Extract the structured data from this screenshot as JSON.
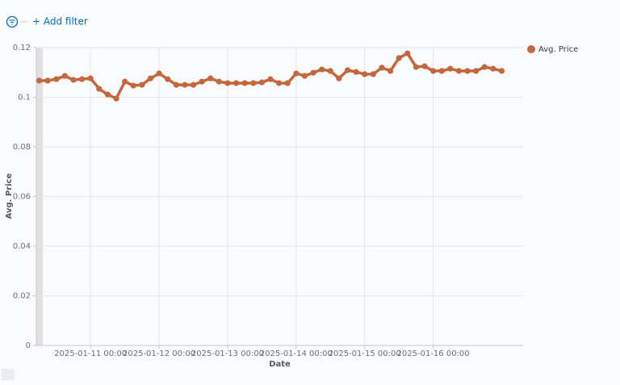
{
  "filter_bar": {
    "add_filter": "+ Add filter"
  },
  "chart_data": {
    "type": "line",
    "x_label": "Date",
    "y_label": "Avg. Price",
    "xlim": [
      "2025-01-10 05:00",
      "2025-01-17 07:30"
    ],
    "xticks": [
      "2025-01-11 00:00",
      "2025-01-12 00:00",
      "2025-01-13 00:00",
      "2025-01-14 00:00",
      "2025-01-15 00:00",
      "2025-01-16 00:00"
    ],
    "ylim": [
      0,
      0.12
    ],
    "yticks": [
      0,
      0.02,
      0.04,
      0.06,
      0.08,
      0.1,
      0.12
    ],
    "grid": true,
    "legend": "top-right",
    "x": [
      "2025-01-10 06:00",
      "2025-01-10 09:00",
      "2025-01-10 12:00",
      "2025-01-10 15:00",
      "2025-01-10 18:00",
      "2025-01-10 21:00",
      "2025-01-11 00:00",
      "2025-01-11 03:00",
      "2025-01-11 06:00",
      "2025-01-11 09:00",
      "2025-01-11 12:00",
      "2025-01-11 15:00",
      "2025-01-11 18:00",
      "2025-01-11 21:00",
      "2025-01-12 00:00",
      "2025-01-12 03:00",
      "2025-01-12 06:00",
      "2025-01-12 09:00",
      "2025-01-12 12:00",
      "2025-01-12 15:00",
      "2025-01-12 18:00",
      "2025-01-12 21:00",
      "2025-01-13 00:00",
      "2025-01-13 03:00",
      "2025-01-13 06:00",
      "2025-01-13 09:00",
      "2025-01-13 12:00",
      "2025-01-13 15:00",
      "2025-01-13 18:00",
      "2025-01-13 21:00",
      "2025-01-14 00:00",
      "2025-01-14 03:00",
      "2025-01-14 06:00",
      "2025-01-14 09:00",
      "2025-01-14 12:00",
      "2025-01-14 15:00",
      "2025-01-14 18:00",
      "2025-01-14 21:00",
      "2025-01-15 00:00",
      "2025-01-15 03:00",
      "2025-01-15 06:00",
      "2025-01-15 09:00",
      "2025-01-15 12:00",
      "2025-01-15 15:00",
      "2025-01-15 18:00",
      "2025-01-15 21:00",
      "2025-01-16 00:00",
      "2025-01-16 03:00",
      "2025-01-16 06:00",
      "2025-01-16 09:00",
      "2025-01-16 12:00",
      "2025-01-16 15:00",
      "2025-01-16 18:00",
      "2025-01-16 21:00",
      "2025-01-17 00:00"
    ],
    "series": [
      {
        "name": "Avg. Price",
        "color": "#c4673c",
        "values": [
          0.1067,
          0.1067,
          0.1073,
          0.1086,
          0.107,
          0.1073,
          0.1076,
          0.1034,
          0.1011,
          0.0995,
          0.1063,
          0.1047,
          0.105,
          0.1076,
          0.1096,
          0.1073,
          0.105,
          0.105,
          0.105,
          0.1063,
          0.1076,
          0.1063,
          0.1057,
          0.1057,
          0.1057,
          0.1057,
          0.106,
          0.1073,
          0.1057,
          0.1057,
          0.1096,
          0.1086,
          0.1099,
          0.1112,
          0.1106,
          0.1076,
          0.1109,
          0.1102,
          0.1093,
          0.1093,
          0.1119,
          0.1106,
          0.1158,
          0.1177,
          0.1122,
          0.1125,
          0.1106,
          0.1106,
          0.1115,
          0.1106,
          0.1106,
          0.1106,
          0.1122,
          0.1115,
          0.1106
        ]
      }
    ]
  }
}
